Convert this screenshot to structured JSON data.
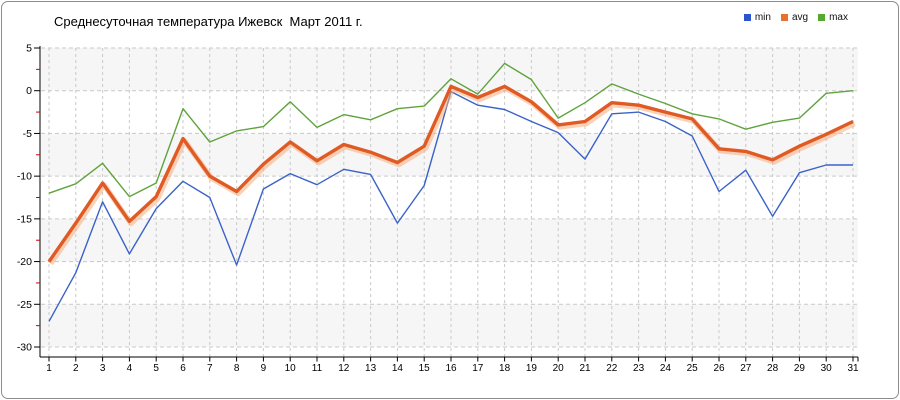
{
  "window": {
    "background": "#ffffff",
    "border_color": "#8d8d8d"
  },
  "legend": {
    "items": [
      {
        "label": "min",
        "color": "#2b55cc"
      },
      {
        "label": "avg",
        "color": "#e8702c"
      },
      {
        "label": "max",
        "color": "#55a832"
      }
    ]
  },
  "chart_data": {
    "type": "line",
    "title": "Среднесуточная температура Ижевск  Март 2011 г.",
    "xlabel": "",
    "ylabel": "",
    "x": [
      1,
      2,
      3,
      4,
      5,
      6,
      7,
      8,
      9,
      10,
      11,
      12,
      13,
      14,
      15,
      16,
      17,
      18,
      19,
      20,
      21,
      22,
      23,
      24,
      25,
      26,
      27,
      28,
      29,
      30,
      31
    ],
    "series": [
      {
        "name": "min",
        "color": "#3a62c8",
        "width": 1.4,
        "values": [
          -27.0,
          -21.3,
          -13.0,
          -19.1,
          -13.8,
          -10.6,
          -12.5,
          -20.4,
          -11.5,
          -9.7,
          -11.0,
          -9.2,
          -9.8,
          -15.5,
          -11.1,
          -0.1,
          -1.7,
          -2.2,
          -3.6,
          -4.9,
          -8.0,
          -2.7,
          -2.5,
          -3.6,
          -5.3,
          -11.8,
          -9.3,
          -14.7,
          -9.6,
          -8.7,
          -8.7
        ]
      },
      {
        "name": "avg",
        "color": "#e05a24",
        "halo_color": "#f5ad7d",
        "width": 3.4,
        "values": [
          -20.0,
          -15.5,
          -10.8,
          -15.3,
          -12.4,
          -5.6,
          -10.0,
          -11.8,
          -8.6,
          -6.0,
          -8.2,
          -6.3,
          -7.2,
          -8.4,
          -6.5,
          0.5,
          -0.8,
          0.5,
          -1.3,
          -4.0,
          -3.6,
          -1.4,
          -1.7,
          -2.5,
          -3.3,
          -6.8,
          -7.1,
          -8.1,
          -6.5,
          -5.1,
          -3.6
        ]
      },
      {
        "name": "max",
        "color": "#5fa33c",
        "width": 1.4,
        "values": [
          -12.0,
          -10.9,
          -8.5,
          -12.4,
          -10.8,
          -2.1,
          -6.0,
          -4.7,
          -4.2,
          -1.3,
          -4.3,
          -2.8,
          -3.4,
          -2.1,
          -1.8,
          1.4,
          -0.4,
          3.2,
          1.3,
          -3.2,
          -1.4,
          0.8,
          -0.4,
          -1.5,
          -2.7,
          -3.3,
          -4.5,
          -3.7,
          -3.2,
          -0.3,
          0.0
        ]
      }
    ],
    "ylim": [
      -30,
      5
    ],
    "yticks": [
      5,
      0,
      -5,
      -10,
      -15,
      -20,
      -25,
      -30
    ],
    "yminorticks": [
      2.5,
      -2.5,
      -7.5,
      -12.5,
      -17.5,
      -22.5,
      -27.5
    ],
    "grid": "dashed",
    "legend_position": "top-right",
    "colors": {
      "band": "#f6f6f6",
      "band_alt": "#ffffff",
      "grid": "#c9c9c9",
      "axis": "#000000",
      "minor_tick": "#d40000",
      "tick_label": "#000000"
    }
  }
}
